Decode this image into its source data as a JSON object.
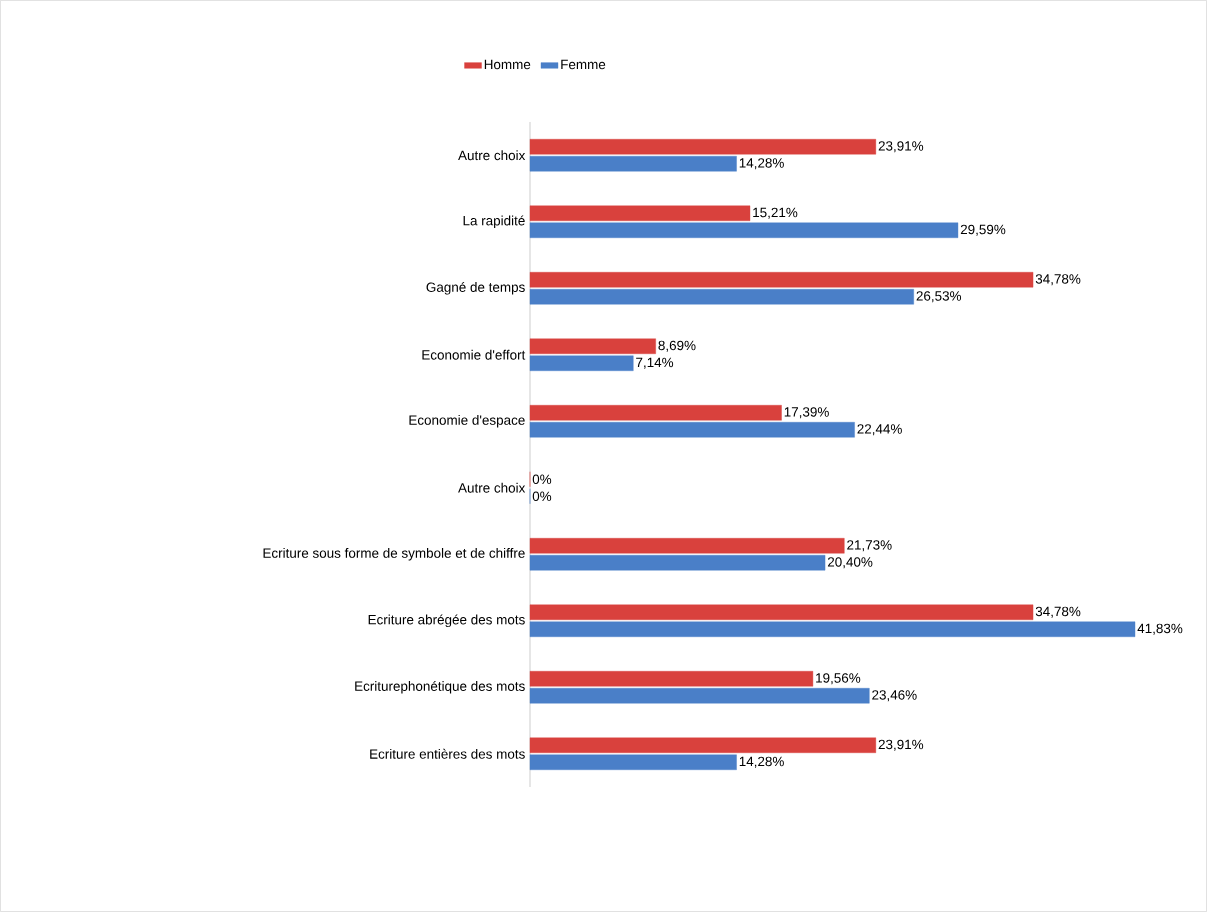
{
  "chart_data": {
    "type": "bar",
    "orientation": "horizontal",
    "categories": [
      "Autre choix",
      "La rapidité",
      "Gagné de temps",
      "Economie d'effort",
      "Economie d'espace",
      "Autre choix",
      "Ecriture sous forme de symbole et de chiffre",
      "Ecriture abrégée des mots",
      "Ecriturephonétique des mots",
      "Ecriture entières des mots"
    ],
    "series": [
      {
        "name": "Homme",
        "color": "#d9413d",
        "values": [
          23.91,
          15.21,
          34.78,
          8.69,
          17.39,
          0,
          21.73,
          34.78,
          19.56,
          23.91
        ],
        "value_labels": [
          "23,91%",
          "15,21%",
          "34,78%",
          "8,69%",
          "17,39%",
          "0%",
          "21,73%",
          "34,78%",
          "19,56%",
          "23,91%"
        ]
      },
      {
        "name": "Femme",
        "color": "#4a7fc8",
        "values": [
          14.28,
          29.59,
          26.53,
          7.14,
          22.44,
          0,
          20.4,
          41.83,
          23.46,
          14.28
        ],
        "value_labels": [
          "14,28%",
          "29,59%",
          "26,53%",
          "7,14%",
          "22,44%",
          "0%",
          "20,40%",
          "41,83%",
          "23,46%",
          "14,28%"
        ]
      }
    ],
    "legend": "top",
    "grid": false
  }
}
